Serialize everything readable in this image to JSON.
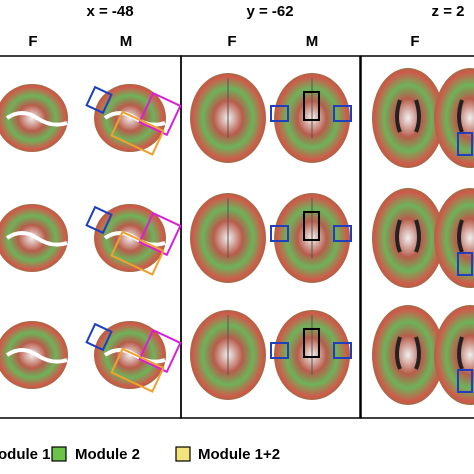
{
  "header": {
    "views": [
      "x = -48",
      "y = -62",
      "z = 2"
    ]
  },
  "columns": [
    "F",
    "M",
    "F",
    "M",
    "F"
  ],
  "legend": {
    "items": [
      {
        "label": "odule 1",
        "color": "#e8534a"
      },
      {
        "label": "Module 2",
        "color": "#6cc24a"
      },
      {
        "label": "Module 1+2",
        "color": "#f2e37a"
      }
    ]
  }
}
